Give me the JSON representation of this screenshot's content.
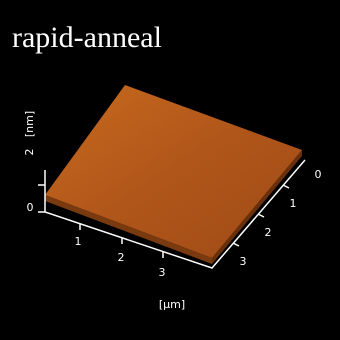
{
  "title": "rapid-anneal",
  "z_axis": {
    "label": "[nm]",
    "ticks": [
      "0",
      "2"
    ]
  },
  "x_axis": {
    "ticks": [
      "1",
      "2",
      "3"
    ]
  },
  "y_axis": {
    "ticks": [
      "0",
      "1",
      "2",
      "3"
    ]
  },
  "unit_label": "[μm]"
}
